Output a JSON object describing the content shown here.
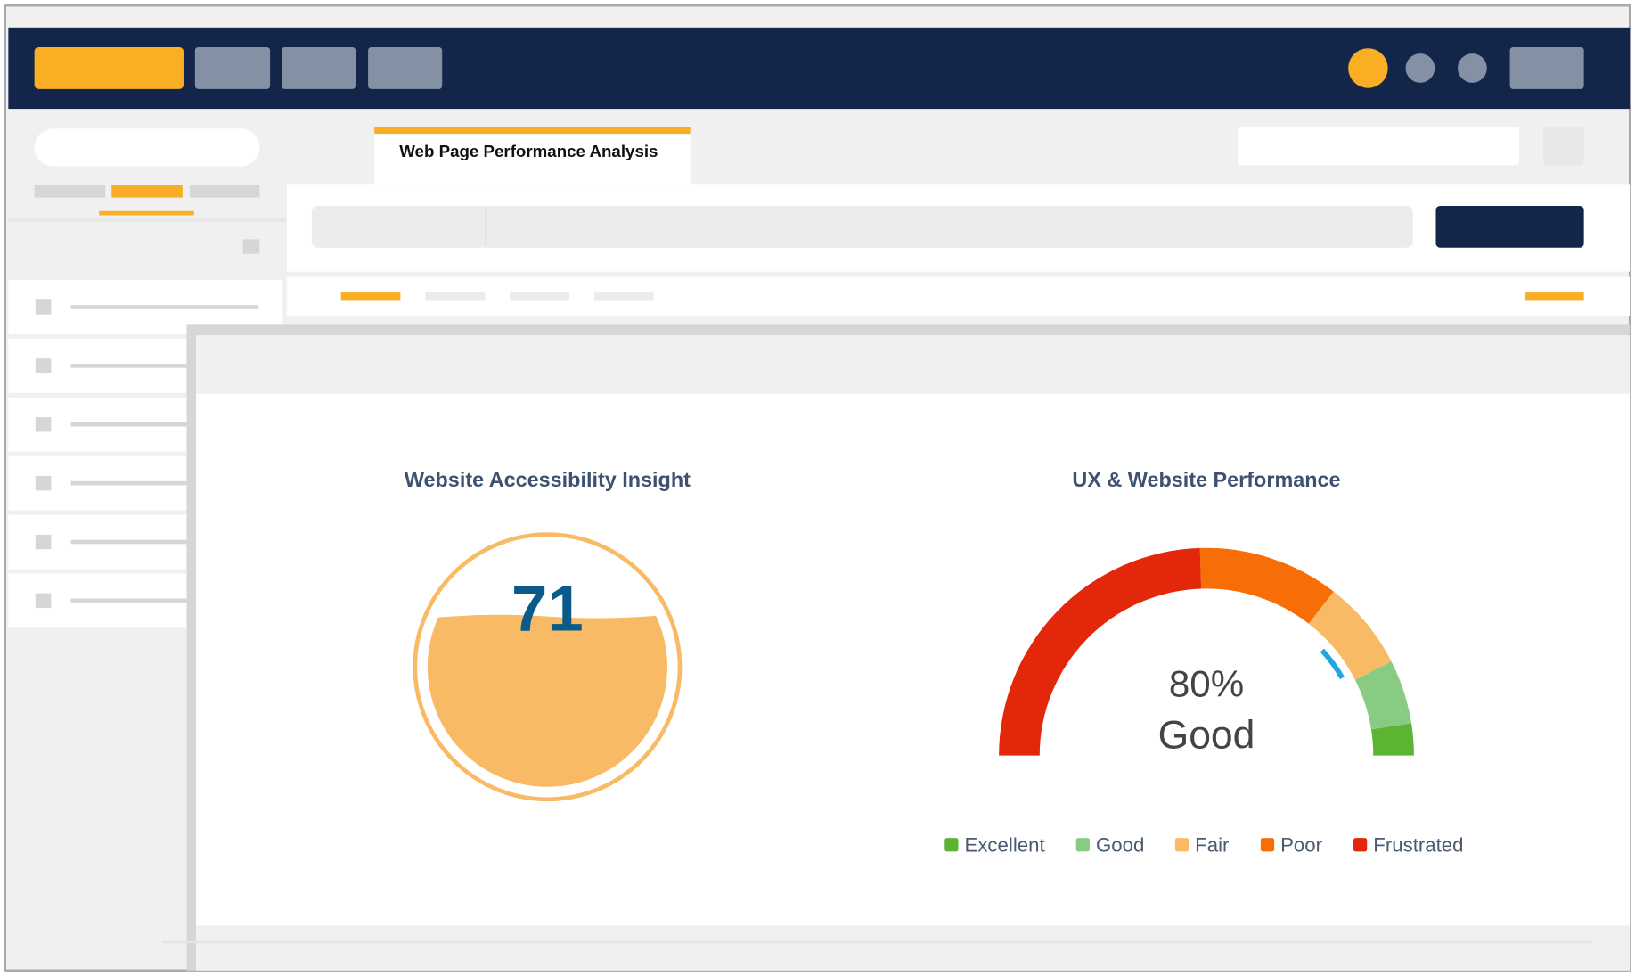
{
  "tab_title": "Web Page Performance Analysis",
  "chart_data": [
    {
      "type": "liquid_gauge",
      "title": "Website Accessibility Insight",
      "values": [
        71
      ],
      "ylim": [
        0,
        100
      ],
      "color": "#f9ba66",
      "text_color": "#0a5a8a"
    },
    {
      "type": "gauge",
      "title": "UX & Website Performance",
      "values": [
        80
      ],
      "value_labels": [
        "80%"
      ],
      "rating": "Good",
      "ylim": [
        0,
        100
      ],
      "marker_color": "#1ea7e1",
      "series": [
        {
          "name": "Excellent",
          "color": "#5db332",
          "values": [
            5
          ]
        },
        {
          "name": "Good",
          "color": "#88cc84",
          "values": [
            10
          ]
        },
        {
          "name": "Fair",
          "color": "#f9ba66",
          "values": [
            14
          ]
        },
        {
          "name": "Poor",
          "color": "#f76e06",
          "values": [
            22
          ]
        },
        {
          "name": "Frustrated",
          "color": "#e3270a",
          "values": [
            49
          ]
        }
      ]
    }
  ]
}
